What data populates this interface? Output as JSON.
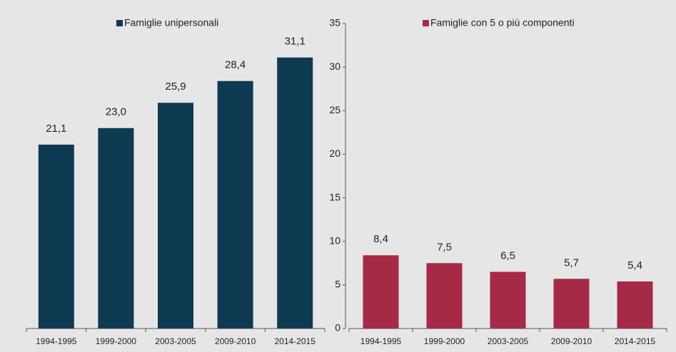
{
  "chart_data": [
    {
      "type": "bar",
      "categories": [
        "1994-1995",
        "1999-2000",
        "2003-2005",
        "2009-2010",
        "2014-2015"
      ],
      "series": [
        {
          "name": "Famiglie unipersonali",
          "color": "#0e3a52",
          "values": [
            21.1,
            23.0,
            25.9,
            28.4,
            31.1
          ],
          "value_labels": [
            "21,1",
            "23,0",
            "25,9",
            "28,4",
            "31,1"
          ]
        }
      ],
      "ylim": [
        0,
        35
      ]
    },
    {
      "type": "bar",
      "categories": [
        "1994-1995",
        "1999-2000",
        "2003-2005",
        "2009-2010",
        "2014-2015"
      ],
      "series": [
        {
          "name": "Famiglie con 5 o più componenti",
          "color": "#a52a45",
          "values": [
            8.4,
            7.5,
            6.5,
            5.7,
            5.4
          ],
          "value_labels": [
            "8,4",
            "7,5",
            "6,5",
            "5,7",
            "5,4"
          ]
        }
      ],
      "ylim": [
        0,
        35
      ],
      "yticks": [
        0,
        5,
        10,
        15,
        20,
        25,
        30,
        35
      ]
    }
  ]
}
